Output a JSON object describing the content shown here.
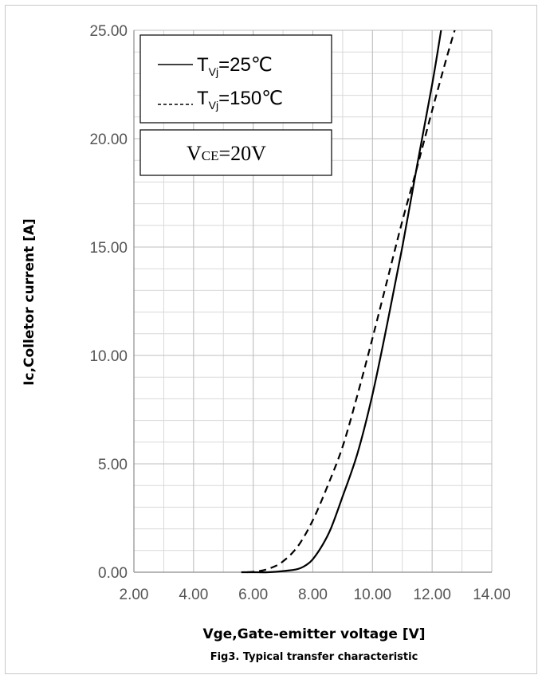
{
  "chart_data": {
    "type": "line",
    "title": "",
    "xlabel": "Vge,Gate-emitter voltage [V]",
    "ylabel": "Ic,Colletor current [A]",
    "caption": "Fig3. Typical transfer characteristic",
    "xlim": [
      2,
      14
    ],
    "ylim": [
      0,
      25
    ],
    "x_ticks": [
      "2.00",
      "4.00",
      "6.00",
      "8.00",
      "10.00",
      "12.00",
      "14.00"
    ],
    "y_ticks": [
      "0.00",
      "5.00",
      "10.00",
      "15.00",
      "20.00",
      "25.00"
    ],
    "x_minor_step": 1,
    "y_minor_step": 1,
    "grid": true,
    "legend": {
      "placement": "top-left",
      "entries": [
        {
          "prefix": "T",
          "sub": "Vj",
          "suffix": "=25℃",
          "style": "solid"
        },
        {
          "prefix": "T",
          "sub": "Vj",
          "suffix": "=150℃",
          "style": "dashed"
        }
      ]
    },
    "annotation": {
      "prefix": "V",
      "sub": "CE",
      "suffix": "=20V"
    },
    "series": [
      {
        "style": "solid",
        "x": [
          5.6,
          6.0,
          6.5,
          7.0,
          7.5,
          7.8,
          8.0,
          8.3,
          8.6,
          9.0,
          9.5,
          10.0,
          10.5,
          11.0,
          11.5,
          12.0,
          12.3
        ],
        "y": [
          0.0,
          0.0,
          0.0,
          0.05,
          0.15,
          0.35,
          0.6,
          1.2,
          2.0,
          3.5,
          5.5,
          8.2,
          11.5,
          15.0,
          18.8,
          22.5,
          25.0
        ]
      },
      {
        "style": "dashed",
        "x": [
          5.8,
          6.2,
          6.6,
          7.0,
          7.5,
          8.0,
          8.5,
          9.0,
          9.5,
          10.0,
          10.5,
          11.0,
          11.5,
          12.0,
          12.5,
          12.8
        ],
        "y": [
          0.0,
          0.05,
          0.2,
          0.5,
          1.2,
          2.4,
          4.0,
          5.8,
          8.2,
          10.8,
          13.5,
          16.2,
          18.7,
          21.3,
          23.8,
          25.2
        ]
      }
    ]
  }
}
